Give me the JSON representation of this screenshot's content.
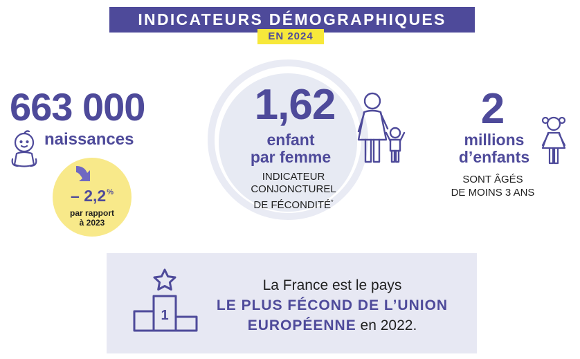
{
  "header": {
    "title": "INDICATEURS DÉMOGRAPHIQUES",
    "year": "EN 2024"
  },
  "births": {
    "value": "663 000",
    "label": "naissances",
    "change_value": "– 2,2",
    "change_unit": "%",
    "change_note_1": "par rapport",
    "change_note_2": "à 2023"
  },
  "fertility": {
    "value": "1,62",
    "label_1": "enfant",
    "label_2": "par femme",
    "note_1": "INDICATEUR",
    "note_2": "CONJONCTUREL",
    "note_3": "DE FÉCONDITÉ",
    "note_mark": "*"
  },
  "children": {
    "value": "2",
    "label_1": "millions",
    "label_2": "d’enfants",
    "note_1": "SONT ÂGÉS",
    "note_2": "DE MOINS 3 ANS"
  },
  "europe": {
    "line_1": "La France est le pays",
    "highlight_1": "LE PLUS FÉCOND DE L’UNION",
    "highlight_2": "EUROPÉENNE",
    "tail": " en 2022.",
    "podium_rank": "1"
  },
  "colors": {
    "primary": "#4e4a9a",
    "yellow": "#f7e83a",
    "pale_yellow": "#f8e98a",
    "panel": "#e7e8f3"
  },
  "icons": [
    "baby-icon",
    "down-arrow-icon",
    "mother-child-icon",
    "girl-icon",
    "star-icon",
    "podium-icon"
  ]
}
